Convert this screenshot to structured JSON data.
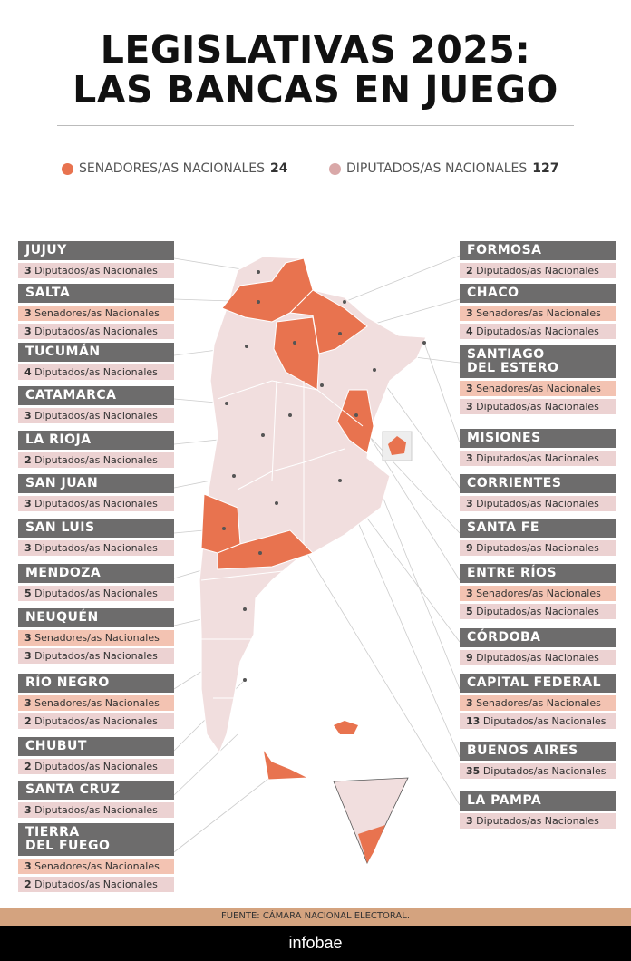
{
  "title_line1": "LEGISLATIVAS 2025:",
  "title_line2": "LAS BANCAS EN JUEGO",
  "legend": {
    "senadores": {
      "label": "SENADORES/AS NACIONALES",
      "total": "24",
      "color": "#e8734f"
    },
    "diputados": {
      "label": "DIPUTADOS/AS NACIONALES",
      "total": "127",
      "color": "#d9a8a8"
    }
  },
  "sen_label": "Senadores/as Nacionales",
  "dip_label": "Diputados/as Nacionales",
  "left": [
    {
      "name": "JUJUY",
      "dip": "3"
    },
    {
      "name": "SALTA",
      "sen": "3",
      "dip": "3"
    },
    {
      "name": "TUCUMÁN",
      "dip": "4"
    },
    {
      "name": "CATAMARCA",
      "dip": "3"
    },
    {
      "name": "LA RIOJA",
      "dip": "2"
    },
    {
      "name": "SAN JUAN",
      "dip": "3"
    },
    {
      "name": "SAN LUIS",
      "dip": "3"
    },
    {
      "name": "MENDOZA",
      "dip": "5"
    },
    {
      "name": "NEUQUÉN",
      "sen": "3",
      "dip": "3"
    },
    {
      "name": "RÍO  NEGRO",
      "sen": "3",
      "dip": "2"
    },
    {
      "name": "CHUBUT",
      "dip": "2"
    },
    {
      "name": "SANTA CRUZ",
      "dip": "3"
    },
    {
      "name": "TIERRA\nDEL FUEGO",
      "sen": "3",
      "dip": "2"
    }
  ],
  "right": [
    {
      "name": "FORMOSA",
      "dip": "2"
    },
    {
      "name": "CHACO",
      "sen": "3",
      "dip": "4"
    },
    {
      "name": "SANTIAGO\nDEL ESTERO",
      "sen": "3",
      "dip": "3"
    },
    {
      "name": "MISIONES",
      "dip": "3"
    },
    {
      "name": "CORRIENTES",
      "dip": "3"
    },
    {
      "name": "SANTA FE",
      "dip": "9"
    },
    {
      "name": "ENTRE RÍOS",
      "sen": "3",
      "dip": "5"
    },
    {
      "name": "CÓRDOBA",
      "dip": "9"
    },
    {
      "name": "CAPITAL FEDERAL",
      "sen": "3",
      "dip": "13"
    },
    {
      "name": "BUENOS AIRES",
      "dip": "35"
    },
    {
      "name": "LA PAMPA",
      "dip": "3"
    }
  ],
  "source": "FUENTE: CÁMARA NACIONAL ELECTORAL.",
  "brand": "infobae"
}
